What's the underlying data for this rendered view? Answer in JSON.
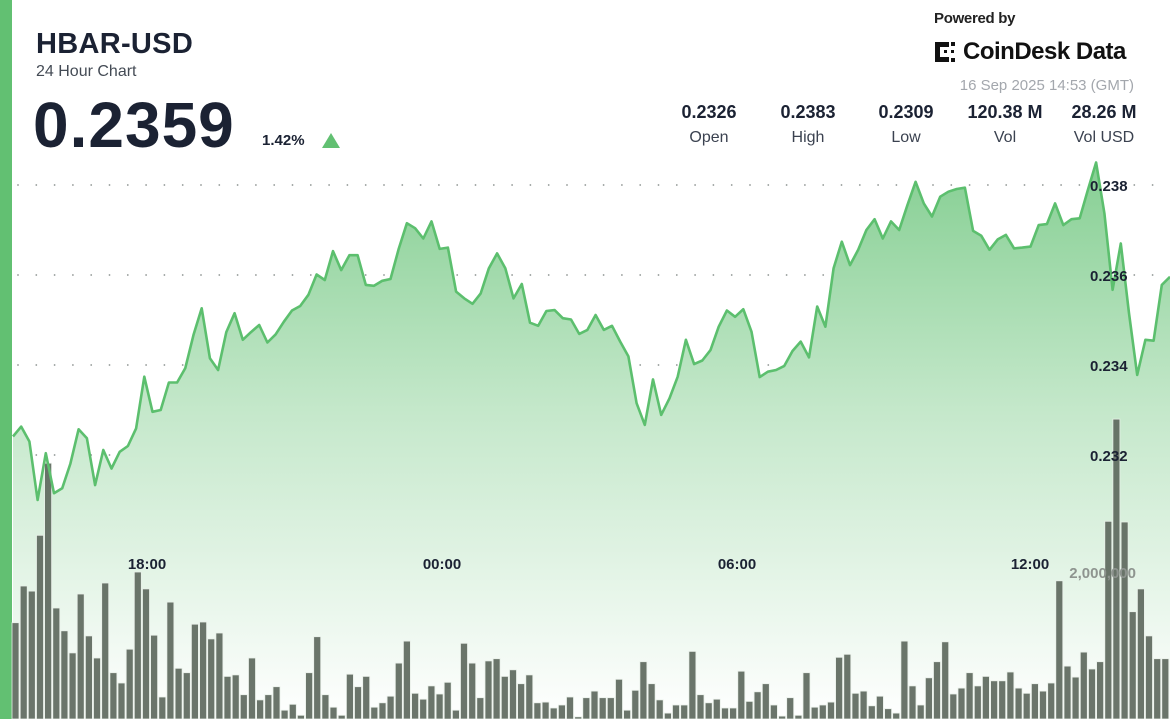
{
  "header": {
    "title": "HBAR-USD",
    "subtitle": "24 Hour Chart",
    "price": "0.2359",
    "change": "1.42%",
    "change_direction": "up",
    "powered_by": "Powered by",
    "brand": "CoinDesk Data",
    "timestamp": "16 Sep 2025 14:53 (GMT)"
  },
  "stats": [
    {
      "value": "0.2326",
      "label": "Open"
    },
    {
      "value": "0.2383",
      "label": "High"
    },
    {
      "value": "0.2309",
      "label": "Low"
    },
    {
      "value": "120.38 M",
      "label": "Vol"
    },
    {
      "value": "28.26 M",
      "label": "Vol USD"
    }
  ],
  "colors": {
    "accent": "#62c072",
    "line": "#5cbf6e",
    "volume_bar": "#5f6a5f",
    "text": "#1b2233"
  },
  "chart_data": {
    "type": "area",
    "y_ticks": [
      "0.238",
      "0.236",
      "0.234",
      "0.232"
    ],
    "y_tick_values": [
      0.238,
      0.236,
      0.234,
      0.232
    ],
    "x_ticks": [
      "18:00",
      "00:00",
      "06:00",
      "12:00"
    ],
    "volume_tick": "2,000,000",
    "volume_tick_value": 2000000,
    "grid": true,
    "times": [
      "15:10",
      "15:20",
      "15:30",
      "15:40",
      "15:50",
      "16:00",
      "16:10",
      "16:20",
      "16:30",
      "16:40",
      "16:50",
      "17:00",
      "17:10",
      "17:20",
      "17:30",
      "17:40",
      "17:50",
      "18:00",
      "18:10",
      "18:20",
      "18:30",
      "18:40",
      "18:50",
      "19:00",
      "19:10",
      "19:20",
      "19:30",
      "19:40",
      "19:50",
      "20:00",
      "20:10",
      "20:20",
      "20:30",
      "20:40",
      "20:50",
      "21:00",
      "21:10",
      "21:20",
      "21:30",
      "21:40",
      "21:50",
      "22:00",
      "22:10",
      "22:20",
      "22:30",
      "22:40",
      "22:50",
      "23:00",
      "23:10",
      "23:20",
      "23:30",
      "23:40",
      "23:50",
      "00:00",
      "00:10",
      "00:20",
      "00:30",
      "00:40",
      "00:50",
      "01:00",
      "01:10",
      "01:20",
      "01:30",
      "01:40",
      "01:50",
      "02:00",
      "02:10",
      "02:20",
      "02:30",
      "02:40",
      "02:50",
      "03:00",
      "03:10",
      "03:20",
      "03:30",
      "03:40",
      "03:50",
      "04:00",
      "04:10",
      "04:20",
      "04:30",
      "04:40",
      "04:50",
      "05:00",
      "05:10",
      "05:20",
      "05:30",
      "05:40",
      "05:50",
      "06:00",
      "06:10",
      "06:20",
      "06:30",
      "06:40",
      "06:50",
      "07:00",
      "07:10",
      "07:20",
      "07:30",
      "07:40",
      "07:50",
      "08:00",
      "08:10",
      "08:20",
      "08:30",
      "08:40",
      "08:50",
      "09:00",
      "09:10",
      "09:20",
      "09:30",
      "09:40",
      "09:50",
      "10:00",
      "10:10",
      "10:20",
      "10:30",
      "10:40",
      "10:50",
      "11:00",
      "11:10",
      "11:20",
      "11:30",
      "11:40",
      "11:50",
      "12:00",
      "12:10",
      "12:20",
      "12:30",
      "12:40",
      "12:50",
      "13:00",
      "13:10",
      "13:20",
      "13:30",
      "13:40",
      "13:50",
      "14:00",
      "14:10",
      "14:20",
      "14:30",
      "14:40"
    ],
    "price": [
      0.23241,
      0.23263,
      0.2323,
      0.231,
      0.23204,
      0.23115,
      0.23126,
      0.23181,
      0.23257,
      0.23237,
      0.23133,
      0.23211,
      0.2317,
      0.23207,
      0.2322,
      0.23259,
      0.23374,
      0.23296,
      0.233,
      0.23361,
      0.23361,
      0.23393,
      0.23467,
      0.23526,
      0.23415,
      0.23389,
      0.23473,
      0.23515,
      0.23456,
      0.23473,
      0.23489,
      0.2345,
      0.23468,
      0.23496,
      0.23521,
      0.23531,
      0.23556,
      0.23601,
      0.23589,
      0.23653,
      0.23611,
      0.23644,
      0.23644,
      0.23578,
      0.23576,
      0.23587,
      0.23591,
      0.23658,
      0.23715,
      0.23704,
      0.23681,
      0.23719,
      0.23658,
      0.23661,
      0.23563,
      0.23548,
      0.23536,
      0.23559,
      0.23615,
      0.23648,
      0.23615,
      0.23548,
      0.2358,
      0.23494,
      0.23487,
      0.2352,
      0.23522,
      0.23504,
      0.23501,
      0.23469,
      0.23478,
      0.23511,
      0.23478,
      0.23487,
      0.23452,
      0.23419,
      0.23315,
      0.23267,
      0.23368,
      0.23289,
      0.23326,
      0.23374,
      0.23456,
      0.23402,
      0.2341,
      0.23433,
      0.23485,
      0.23521,
      0.23507,
      0.23524,
      0.23474,
      0.23373,
      0.23385,
      0.23389,
      0.23398,
      0.23431,
      0.23452,
      0.23417,
      0.2353,
      0.23485,
      0.23615,
      0.23674,
      0.23622,
      0.23656,
      0.237,
      0.23724,
      0.23681,
      0.23719,
      0.237,
      0.23755,
      0.23807,
      0.23759,
      0.2373,
      0.23774,
      0.23785,
      0.23791,
      0.23794,
      0.23698,
      0.23687,
      0.23656,
      0.23679,
      0.23689,
      0.23659,
      0.23661,
      0.23663,
      0.23711,
      0.23713,
      0.23759,
      0.23711,
      0.23724,
      0.23726,
      0.23789,
      0.2385,
      0.23737,
      0.23567,
      0.2367,
      0.23515,
      0.23378,
      0.23456,
      0.23454,
      0.23578,
      0.23596
    ],
    "volume": [
      1310000,
      1810000,
      1740000,
      2500000,
      3480000,
      1510000,
      1200000,
      900000,
      1700000,
      1130000,
      830000,
      1850000,
      630000,
      490000,
      950000,
      2000000,
      1770000,
      1140000,
      300000,
      1590000,
      690000,
      630000,
      1290000,
      1320000,
      1090000,
      1170000,
      580000,
      600000,
      330000,
      830000,
      260000,
      330000,
      440000,
      120000,
      200000,
      50000,
      630000,
      1120000,
      330000,
      160000,
      50000,
      610000,
      440000,
      580000,
      160000,
      220000,
      310000,
      760000,
      1060000,
      350000,
      270000,
      450000,
      340000,
      500000,
      120000,
      1030000,
      760000,
      290000,
      790000,
      820000,
      580000,
      670000,
      480000,
      600000,
      220000,
      230000,
      150000,
      190000,
      300000,
      30000,
      290000,
      380000,
      290000,
      290000,
      540000,
      120000,
      390000,
      780000,
      480000,
      260000,
      80000,
      190000,
      190000,
      920000,
      330000,
      220000,
      270000,
      150000,
      150000,
      650000,
      240000,
      370000,
      480000,
      190000,
      40000,
      290000,
      50000,
      630000,
      160000,
      190000,
      230000,
      840000,
      880000,
      350000,
      380000,
      180000,
      310000,
      140000,
      80000,
      1060000,
      450000,
      190000,
      560000,
      780000,
      1050000,
      340000,
      420000,
      630000,
      450000,
      580000,
      520000,
      520000,
      640000,
      420000,
      350000,
      480000,
      380000,
      490000,
      1880000,
      720000,
      570000,
      910000,
      680000,
      780000,
      2690000,
      4080000,
      2680000,
      1460000,
      1770000,
      1130000,
      820000,
      820000
    ]
  }
}
